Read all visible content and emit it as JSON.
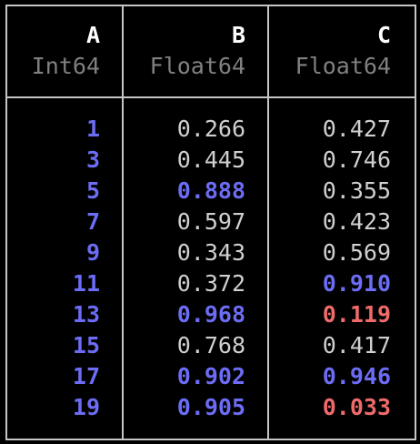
{
  "columns": [
    {
      "name": "A",
      "type": "Int64"
    },
    {
      "name": "B",
      "type": "Float64"
    },
    {
      "name": "C",
      "type": "Float64"
    }
  ],
  "rows": [
    {
      "A": "1",
      "B": "0.266",
      "C": "0.427"
    },
    {
      "A": "3",
      "B": "0.445",
      "C": "0.746"
    },
    {
      "A": "5",
      "B": "0.888",
      "C": "0.355"
    },
    {
      "A": "7",
      "B": "0.597",
      "C": "0.423"
    },
    {
      "A": "9",
      "B": "0.343",
      "C": "0.569"
    },
    {
      "A": "11",
      "B": "0.372",
      "C": "0.910"
    },
    {
      "A": "13",
      "B": "0.968",
      "C": "0.119"
    },
    {
      "A": "15",
      "B": "0.768",
      "C": "0.417"
    },
    {
      "A": "17",
      "B": "0.902",
      "C": "0.946"
    },
    {
      "A": "19",
      "B": "0.905",
      "C": "0.033"
    }
  ],
  "highlight": {
    "A": [
      "blue",
      "blue",
      "blue",
      "blue",
      "blue",
      "blue",
      "blue",
      "blue",
      "blue",
      "blue"
    ],
    "B": [
      "normal",
      "normal",
      "blue",
      "normal",
      "normal",
      "normal",
      "blue",
      "normal",
      "blue",
      "blue"
    ],
    "C": [
      "normal",
      "normal",
      "normal",
      "normal",
      "normal",
      "blue",
      "red",
      "normal",
      "blue",
      "red"
    ]
  },
  "colors": {
    "border": "#c6c6c6",
    "background": "#000000",
    "header_name": "#ffffff",
    "header_type": "#808080",
    "value_normal": "#d0d0d0",
    "value_high": "#6c6cf5",
    "value_low": "#ef6a6a"
  }
}
